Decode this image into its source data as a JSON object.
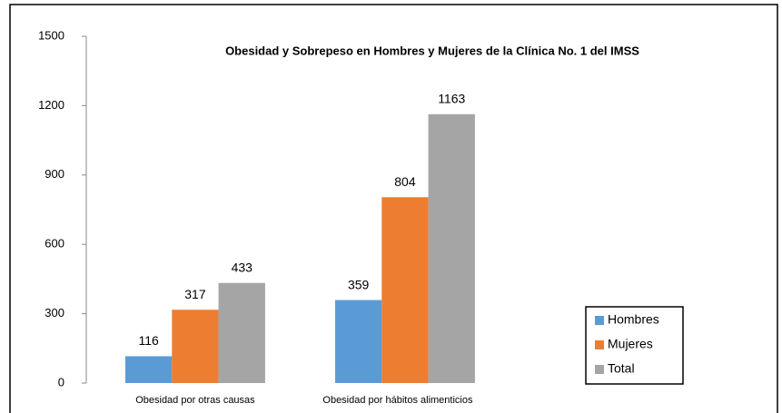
{
  "chart_data": {
    "type": "bar",
    "title": "Obesidad y Sobrepeso en Hombres y Mujeres de la Clínica No. 1 del IMSS",
    "categories": [
      "Obesidad por otras causas",
      "Obesidad por hábitos alimenticios"
    ],
    "series": [
      {
        "name": "Hombres",
        "color": "#5b9bd5",
        "values": [
          116,
          359
        ]
      },
      {
        "name": "Mujeres",
        "color": "#ed7d31",
        "values": [
          317,
          804
        ]
      },
      {
        "name": "Total",
        "color": "#a5a5a5",
        "values": [
          433,
          1163
        ]
      }
    ],
    "ylim": [
      0,
      1500
    ],
    "yticks": [
      0,
      300,
      600,
      900,
      1200,
      1500
    ],
    "legend": "right",
    "grid": false
  }
}
